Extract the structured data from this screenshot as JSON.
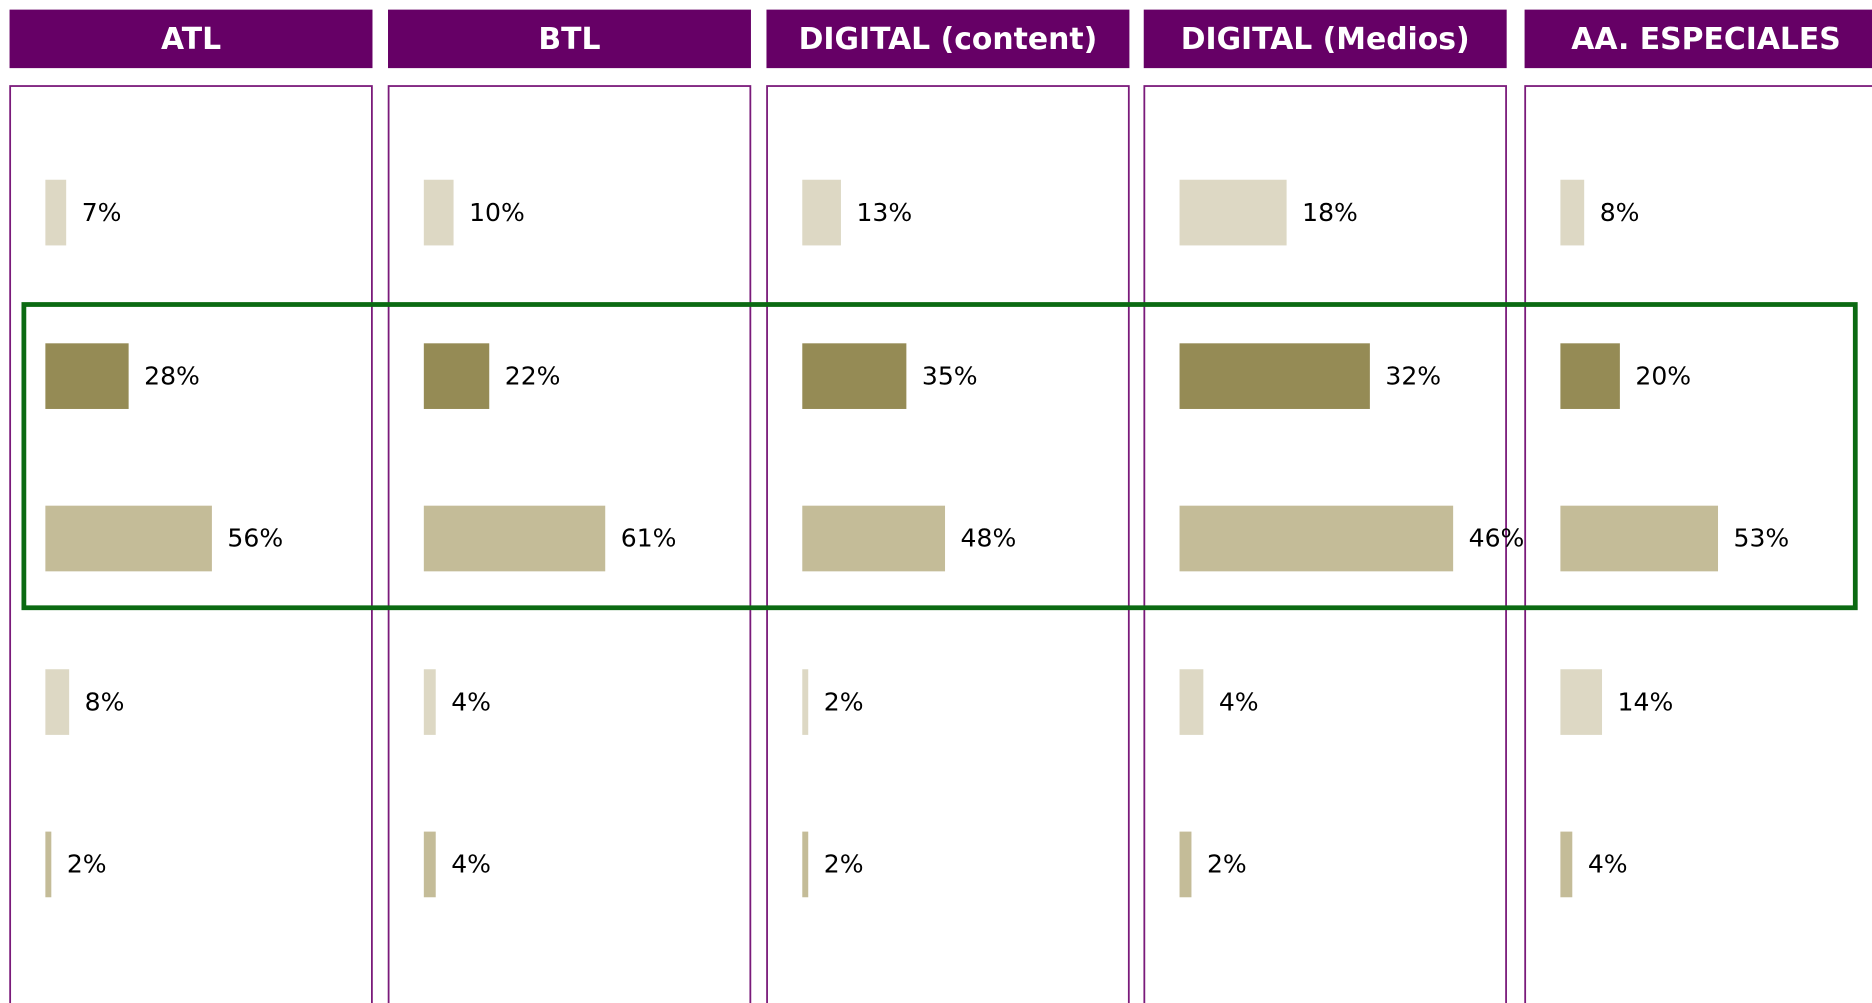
{
  "chart_data": [
    {
      "type": "bar",
      "orientation": "horizontal",
      "title": "ATL",
      "values": [
        7,
        28,
        56,
        8,
        2
      ],
      "value_labels": [
        "7%",
        "28%",
        "56%",
        "8%",
        "2%"
      ],
      "colors": [
        "#ddd8c4",
        "#958b55",
        "#c4bc98",
        "#ddd8c4",
        "#c4bc98"
      ],
      "xlim": [
        0,
        110
      ]
    },
    {
      "type": "bar",
      "orientation": "horizontal",
      "title": "BTL",
      "values": [
        10,
        22,
        61,
        4,
        4
      ],
      "value_labels": [
        "10%",
        "22%",
        "61%",
        "4%",
        "4%"
      ],
      "colors": [
        "#ddd8c4",
        "#958b55",
        "#c4bc98",
        "#ddd8c4",
        "#c4bc98"
      ],
      "xlim": [
        0,
        110
      ]
    },
    {
      "type": "bar",
      "orientation": "horizontal",
      "title": "DIGITAL (content)",
      "values": [
        13,
        35,
        48,
        2,
        2
      ],
      "value_labels": [
        "13%",
        "35%",
        "48%",
        "2%",
        "2%"
      ],
      "colors": [
        "#ddd8c4",
        "#958b55",
        "#c4bc98",
        "#ddd8c4",
        "#c4bc98"
      ],
      "xlim": [
        0,
        110
      ]
    },
    {
      "type": "bar",
      "orientation": "horizontal",
      "title": "DIGITAL (Medios)",
      "values": [
        18,
        32,
        46,
        4,
        2
      ],
      "value_labels": [
        "18%",
        "32%",
        "46%",
        "4%",
        "2%"
      ],
      "colors": [
        "#ddd8c4",
        "#958b55",
        "#c4bc98",
        "#ddd8c4",
        "#c4bc98"
      ],
      "xlim": [
        0,
        55
      ]
    },
    {
      "type": "bar",
      "orientation": "horizontal",
      "title": "AA. ESPECIALES",
      "values": [
        8,
        20,
        53,
        14,
        4
      ],
      "value_labels": [
        "8%",
        "20%",
        "53%",
        "14%",
        "4%"
      ],
      "colors": [
        "#ddd8c4",
        "#958b55",
        "#c4bc98",
        "#ddd8c4",
        "#c4bc98"
      ],
      "xlim": [
        0,
        110
      ]
    }
  ]
}
